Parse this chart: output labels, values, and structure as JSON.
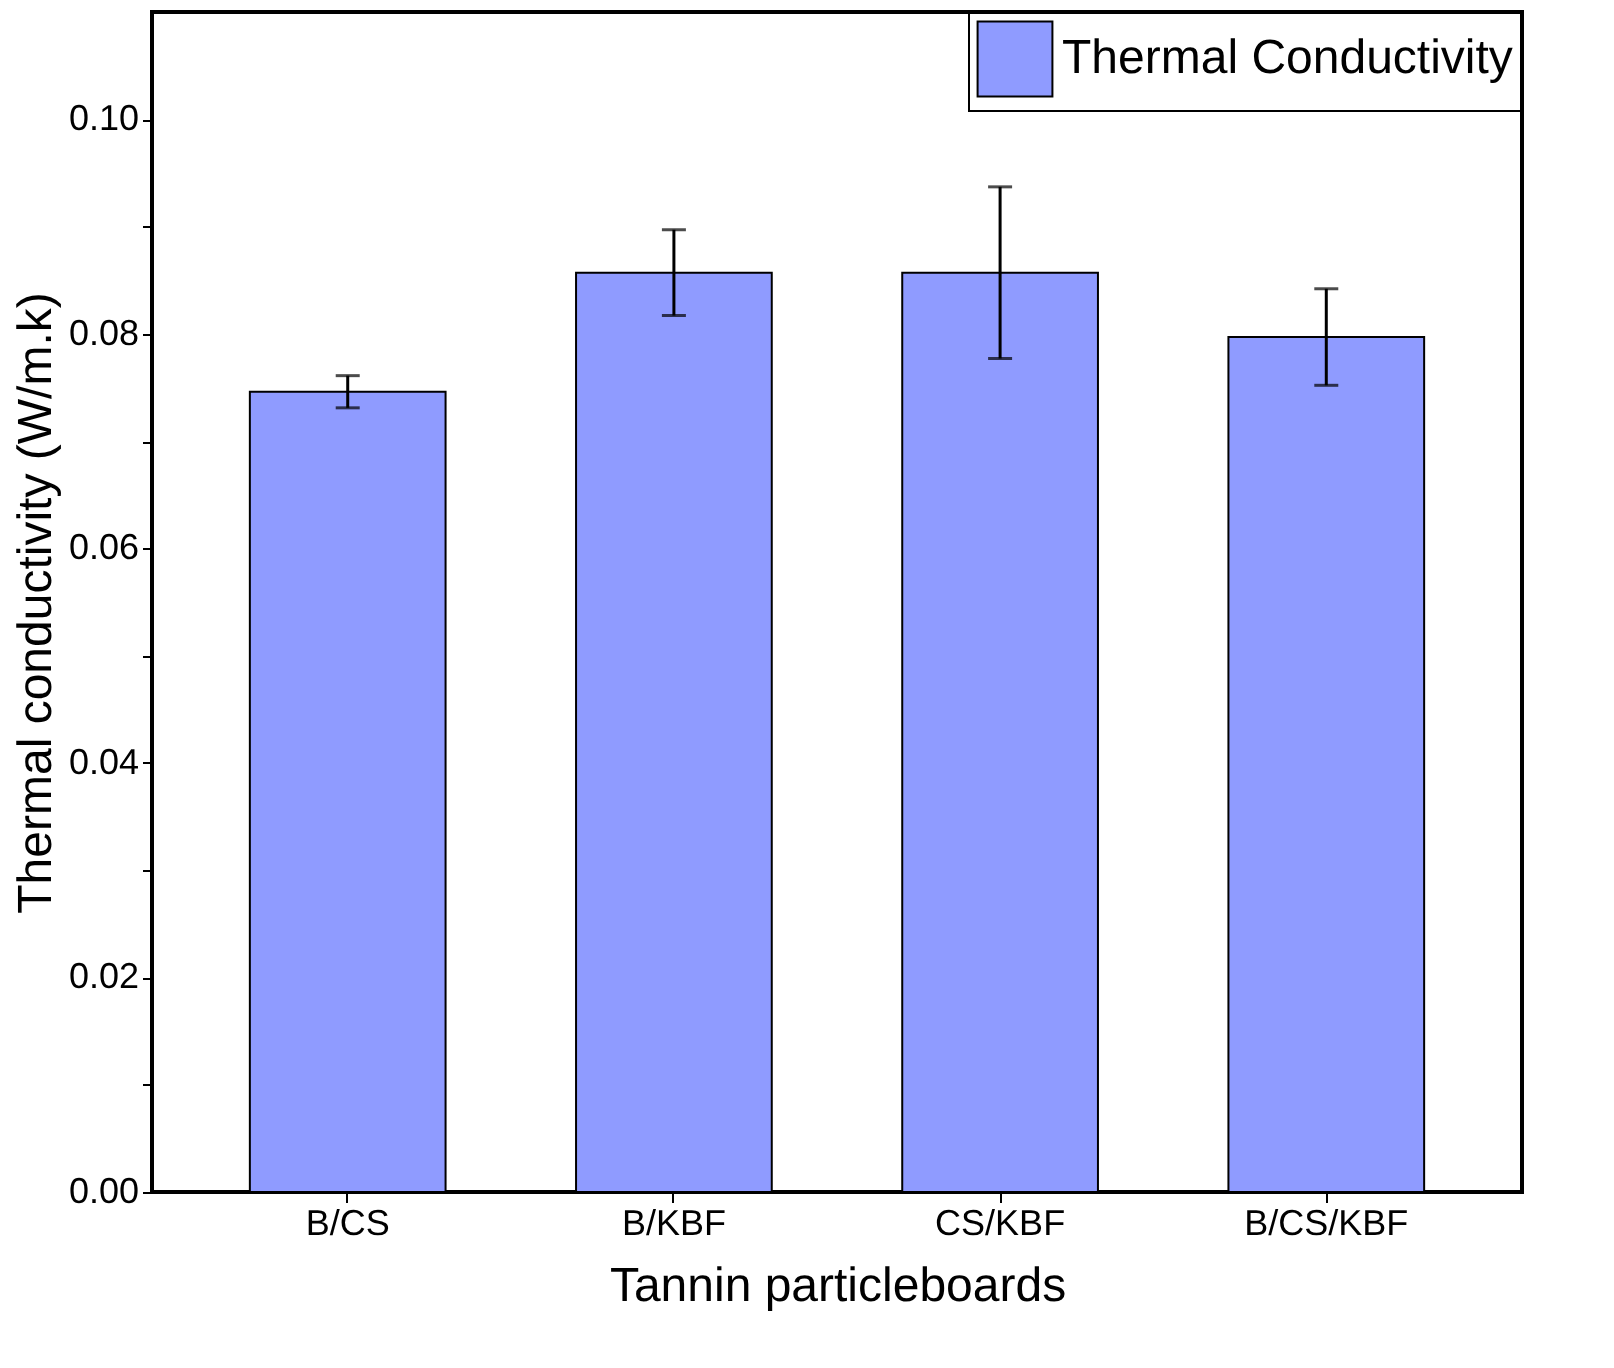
{
  "chart_data": {
    "type": "bar",
    "xlabel": "Tannin particleboards",
    "ylabel": "Thermal conductivity (W/m.k)",
    "categories": [
      "B/CS",
      "B/KBF",
      "CS/KBF",
      "B/CS/KBF"
    ],
    "series": [
      {
        "name": "Thermal Conductivity",
        "color": "#8f9bff",
        "values": [
          0.0746,
          0.0857,
          0.0857,
          0.0797
        ],
        "errors": [
          0.0015,
          0.004,
          0.008,
          0.0045
        ]
      }
    ],
    "ylim": [
      0,
      0.11
    ],
    "yticks": [
      {
        "value": 0,
        "label": "0.00"
      },
      {
        "value": 0.01,
        "label": null
      },
      {
        "value": 0.02,
        "label": "0.02"
      },
      {
        "value": 0.03,
        "label": null
      },
      {
        "value": 0.04,
        "label": "0.04"
      },
      {
        "value": 0.05,
        "label": null
      },
      {
        "value": 0.06,
        "label": "0.06"
      },
      {
        "value": 0.07,
        "label": null
      },
      {
        "value": 0.08,
        "label": "0.08"
      },
      {
        "value": 0.09,
        "label": null
      },
      {
        "value": 0.1,
        "label": "0.10"
      }
    ],
    "grid": false,
    "legend": "top right"
  }
}
